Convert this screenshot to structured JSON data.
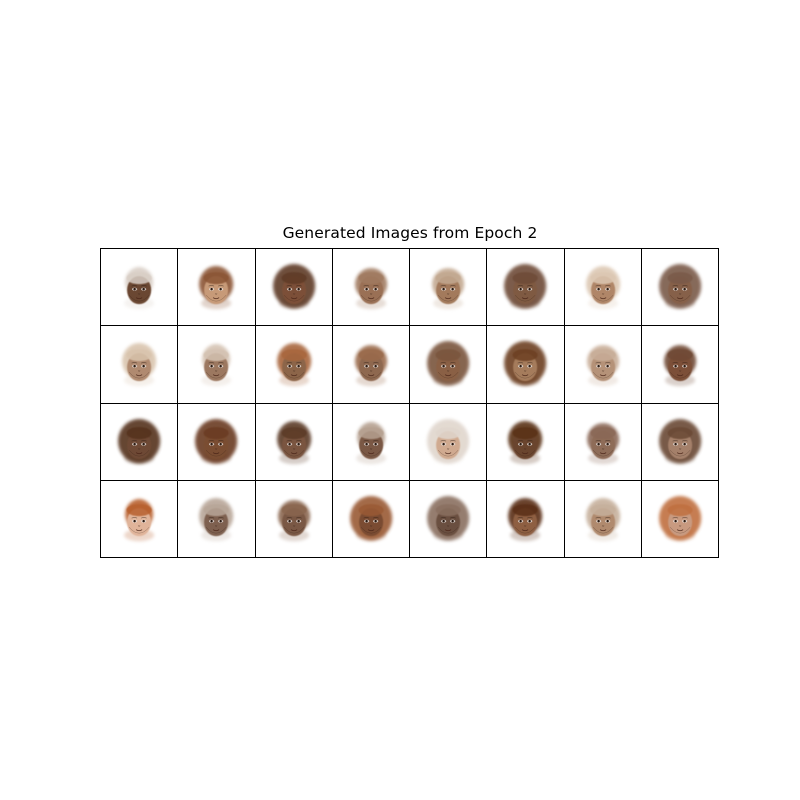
{
  "figure": {
    "title": "Generated Images from Epoch 2",
    "rows": 4,
    "cols": 8
  },
  "faces": [
    {
      "skin": "#6b4630",
      "hair": "#d9cfc6",
      "style": "top"
    },
    {
      "skin": "#c79a78",
      "hair": "#8b5535",
      "style": "bob"
    },
    {
      "skin": "#7b5038",
      "hair": "#5e3a26",
      "style": "big"
    },
    {
      "skin": "#9a7055",
      "hair": "#a07a60",
      "style": "short"
    },
    {
      "skin": "#a37a5c",
      "hair": "#c2a890",
      "style": "short"
    },
    {
      "skin": "#7f5a43",
      "hair": "#6e4b37",
      "style": "big"
    },
    {
      "skin": "#b08668",
      "hair": "#dcc7b2",
      "style": "bob"
    },
    {
      "skin": "#86604a",
      "hair": "#7a5a48",
      "style": "big"
    },
    {
      "skin": "#b08a70",
      "hair": "#d9c4ad",
      "style": "bob"
    },
    {
      "skin": "#9c7860",
      "hair": "#d4c2b2",
      "style": "top"
    },
    {
      "skin": "#8c6548",
      "hair": "#a8663e",
      "style": "bob"
    },
    {
      "skin": "#8e6850",
      "hair": "#9a6a4c",
      "style": "short"
    },
    {
      "skin": "#8a6045",
      "hair": "#7a543c",
      "style": "big"
    },
    {
      "skin": "#a57c5c",
      "hair": "#6d3f24",
      "style": "big"
    },
    {
      "skin": "#b59278",
      "hair": "#c8ad98",
      "style": "short"
    },
    {
      "skin": "#7b5038",
      "hair": "#704a34",
      "style": "short"
    },
    {
      "skin": "#6e4a34",
      "hair": "#54301c",
      "style": "big"
    },
    {
      "skin": "#7a4d30",
      "hair": "#6b3a20",
      "style": "big"
    },
    {
      "skin": "#7a5440",
      "hair": "#5c3a28",
      "style": "bob"
    },
    {
      "skin": "#7a5844",
      "hair": "#b5a090",
      "style": "top"
    },
    {
      "skin": "#d0aa90",
      "hair": "#e0d6cd",
      "style": "big"
    },
    {
      "skin": "#6b442e",
      "hair": "#5a3218",
      "style": "bob"
    },
    {
      "skin": "#8e6c58",
      "hair": "#8a6856",
      "style": "short"
    },
    {
      "skin": "#a4806a",
      "hair": "#6b4a36",
      "style": "big"
    },
    {
      "skin": "#e0b49a",
      "hair": "#b8602e",
      "style": "top"
    },
    {
      "skin": "#7e6050",
      "hair": "#b8a698",
      "style": "bob"
    },
    {
      "skin": "#7a5844",
      "hair": "#8a6650",
      "style": "short"
    },
    {
      "skin": "#7a4c30",
      "hair": "#9a5a34",
      "style": "big"
    },
    {
      "skin": "#6b5040",
      "hair": "#8a7060",
      "style": "big"
    },
    {
      "skin": "#8e5e42",
      "hair": "#5a2e18",
      "style": "bob"
    },
    {
      "skin": "#b08a6e",
      "hair": "#c6b09c",
      "style": "bob"
    },
    {
      "skin": "#c89a80",
      "hair": "#c07040",
      "style": "big"
    }
  ]
}
